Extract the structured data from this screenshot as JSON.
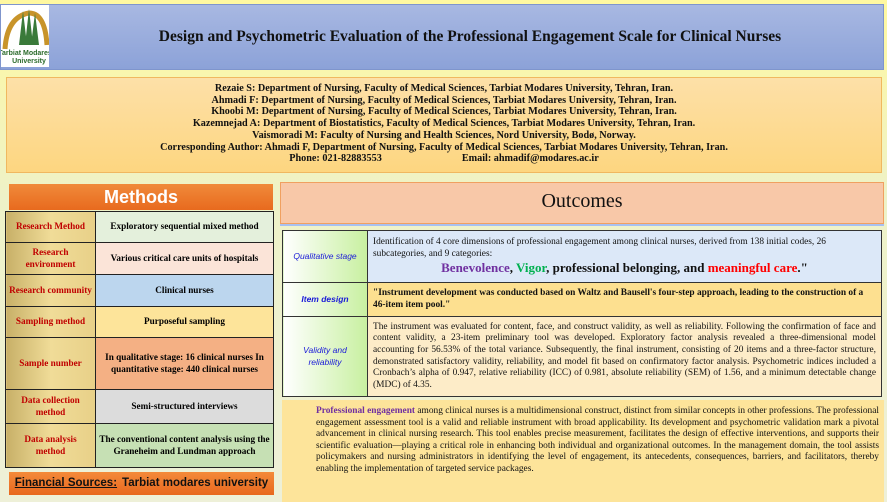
{
  "header": {
    "title": "Design and Psychometric Evaluation of the Professional Engagement Scale for Clinical Nurses",
    "logo_text": "Tarbiat Modares University"
  },
  "authors": {
    "lines": [
      "Rezaie S: Department of Nursing, Faculty of Medical Sciences, Tarbiat Modares University, Tehran, Iran.",
      "Ahmadi F: Department of Nursing, Faculty of Medical Sciences, Tarbiat Modares University, Tehran, Iran.",
      "Khoobi M: Department of Nursing, Faculty of Medical Sciences, Tarbiat Modares University, Tehran, Iran.",
      "Kazemnejad A: Department of Biostatistics, Faculty of Medical Sciences, Tarbiat Modares University, Tehran, Iran.",
      "Vaismoradi M: Faculty of Nursing and Health Sciences, Nord University, Bodø, Norway.",
      "Corresponding Author: Ahmadi F, Department of Nursing, Faculty of Medical Sciences, Tarbiat Modares University, Tehran, Iran."
    ],
    "phone": "Phone: 021-82883553",
    "email": "Email: ahmadif@modares.ac.ir"
  },
  "methods": {
    "title": "Methods",
    "rows": [
      {
        "key": "Research Method",
        "value": "Exploratory sequential mixed method",
        "color": "#e4f0dc"
      },
      {
        "key": "Research environment",
        "value": "Various critical care units of hospitals",
        "color": "#fbe4d8"
      },
      {
        "key": "Research community",
        "value": "Clinical nurses",
        "color": "#bcd6ee"
      },
      {
        "key": "Sampling method",
        "value": "Purposeful sampling",
        "color": "#fde49a"
      },
      {
        "key": "Sample number",
        "value": "In qualitative stage: 16 clinical nurses In quantitative stage: 440 clinical nurses",
        "color": "#f4b084"
      },
      {
        "key": "Data collection method",
        "value": "Semi-structured interviews",
        "color": "#dcdcdc"
      },
      {
        "key": "Data analysis method",
        "value": "The conventional content analysis using the Graneheim and Lundman approach",
        "color": "#c6e0b4"
      }
    ]
  },
  "financial": {
    "label": "Financial Sources:",
    "value": "Tarbiat modares university"
  },
  "outcomes": {
    "title": "Outcomes",
    "qualitative": {
      "key": "Qualitative stage",
      "text": "Identification of 4 core dimensions of professional engagement among clinical nurses, derived from 138 initial codes, 26 subcategories, and 9 categories:",
      "d1": "Benevolence",
      "sep1": ", ",
      "d2": "Vigor",
      "mid": ", professional belonging, and ",
      "d3": "meaningful care",
      "end": ".\"",
      "colors": {
        "benevolence": "#7030a0",
        "vigor": "#00b050",
        "meaningful_care": "#ff0000"
      }
    },
    "item_design": {
      "key": "Item design",
      "text": "\"Instrument development was conducted based on Waltz and Bausell's four-step approach, leading to the construction of a 46-item item pool.\""
    },
    "validity": {
      "key": "Validity and reliability",
      "text": "The instrument was evaluated for content, face, and construct validity, as well as reliability. Following the confirmation of face and content validity, a 23-item preliminary tool was developed. Exploratory factor analysis revealed a three-dimensional model accounting for 56.53% of the total variance. Subsequently, the final instrument, consisting of 20 items and a three-factor structure, demonstrated satisfactory validity, reliability, and model fit based on confirmatory factor analysis. Psychometric indices included a Cronbach’s alpha of 0.947, relative reliability (ICC) of 0.981, absolute reliability (SEM) of 1.56, and a minimum detectable change (MDC) of 4.35."
    }
  },
  "conclusion": {
    "lead": "Professional engagement",
    "text": " among clinical nurses is a multidimensional construct, distinct from similar concepts in other professions. The professional engagement assessment tool is a valid and reliable instrument with broad applicability. Its development and psychometric validation mark a pivotal advancement in clinical nursing research. This tool enables precise measurement, facilitates the design of effective interventions, and supports their scientific evaluation—playing a critical role in enhancing both individual and organizational outcomes. In the management domain, the tool assists policymakers and nursing administrators in identifying the level of engagement, its antecedents, consequences, barriers, and facilitators, thereby enabling the implementation of targeted service packages."
  }
}
